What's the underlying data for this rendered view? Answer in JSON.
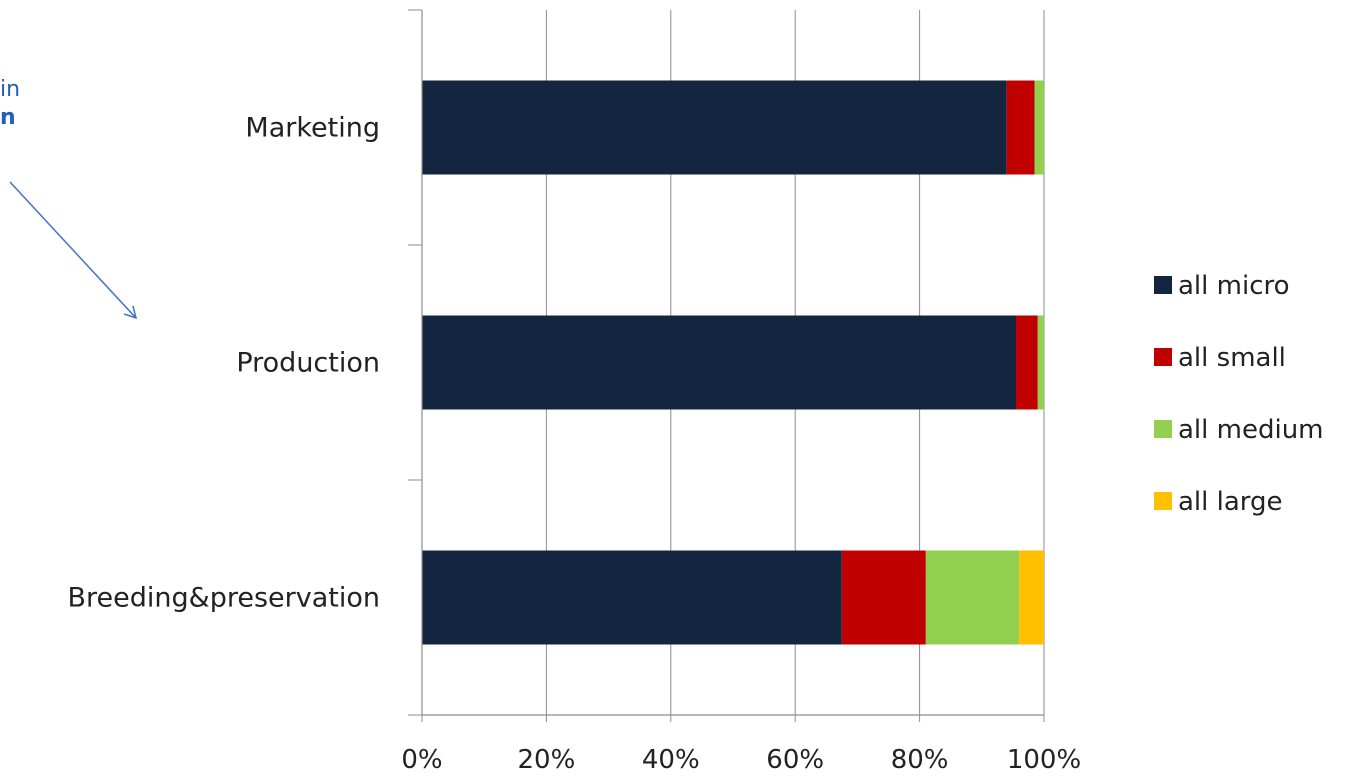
{
  "annotation": {
    "line1": "in",
    "line2": "n"
  },
  "chart_data": {
    "type": "bar",
    "orientation": "horizontal",
    "stacking": "percent",
    "categories": [
      "Marketing",
      "Production",
      "Breeding&preservation"
    ],
    "series": [
      {
        "name": "all micro",
        "color": "#14253f",
        "values": [
          94,
          95.5,
          67.5
        ]
      },
      {
        "name": "all small",
        "color": "#c00000",
        "values": [
          4.5,
          3.5,
          13.5
        ]
      },
      {
        "name": "all medium",
        "color": "#92d050",
        "values": [
          1.5,
          1.0,
          15.0
        ]
      },
      {
        "name": "all large",
        "color": "#ffc000",
        "values": [
          0,
          0,
          4.0
        ]
      }
    ],
    "xlim": [
      0,
      100
    ],
    "xticks": [
      "0%",
      "20%",
      "40%",
      "60%",
      "80%",
      "100%"
    ],
    "grid": true,
    "legend": "right",
    "title": "",
    "xlabel": "",
    "ylabel": ""
  }
}
